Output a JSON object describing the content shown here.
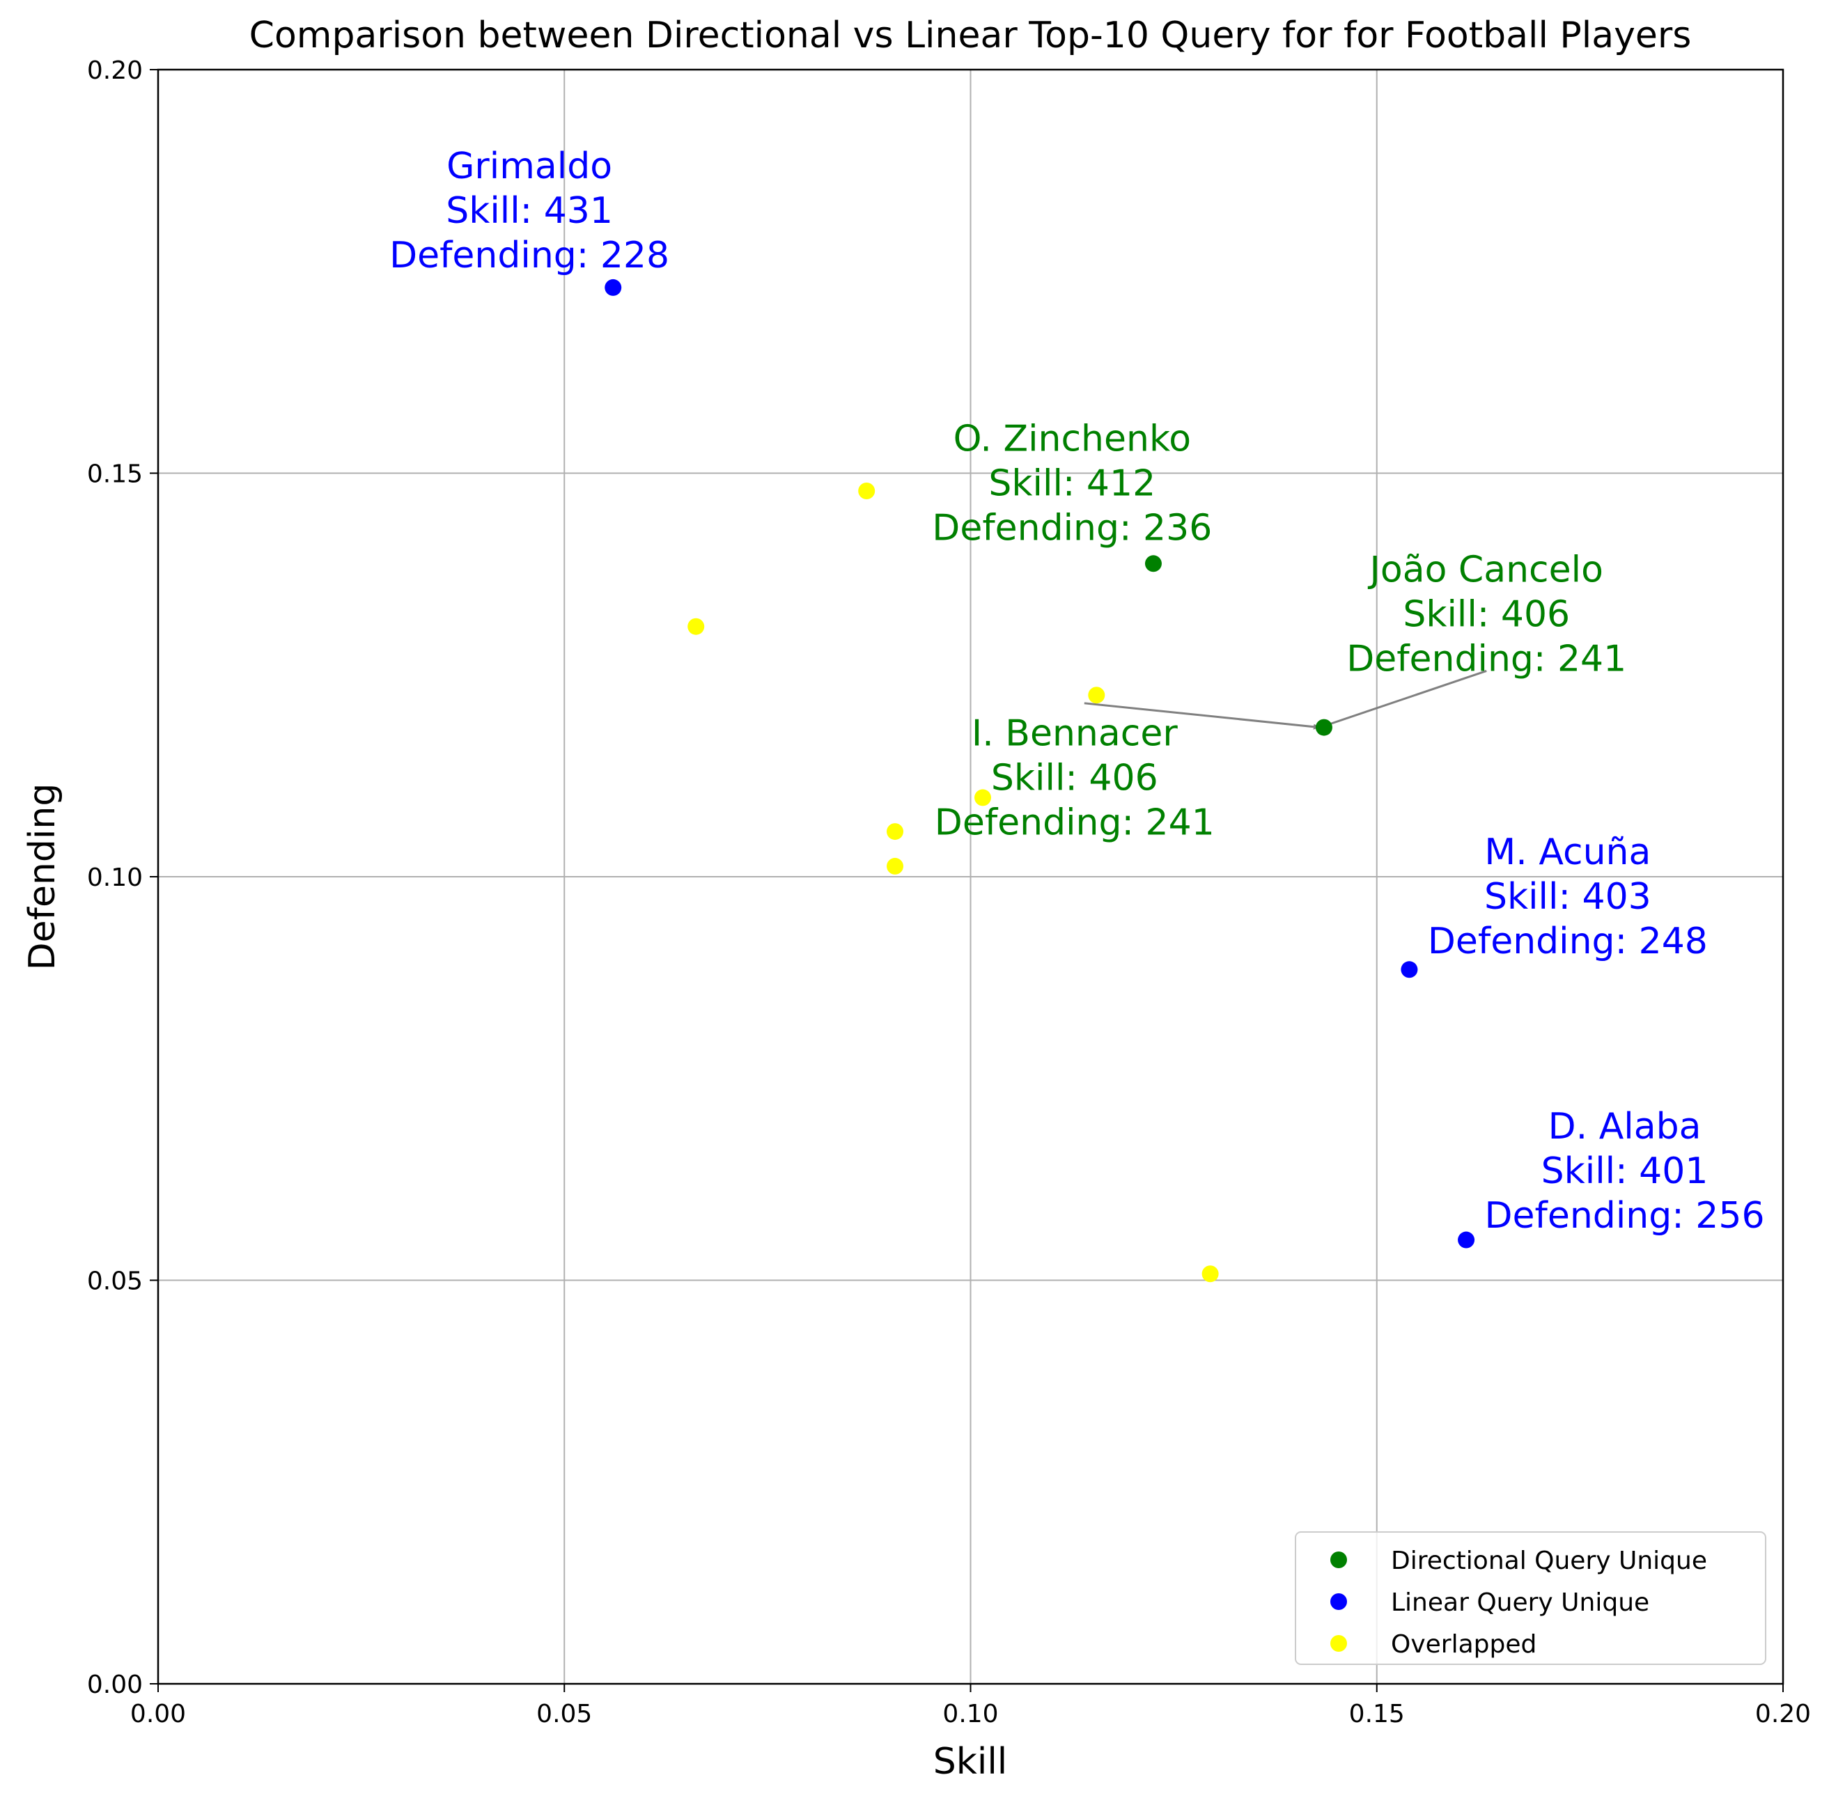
{
  "chart_data": {
    "type": "scatter",
    "title": "Comparison between Directional vs Linear Top-10 Query for for Football Players",
    "xlabel": "Skill",
    "ylabel": "Defending",
    "xlim": [
      0.0,
      0.2
    ],
    "ylim": [
      0.0,
      0.2
    ],
    "xticks": [
      "0.00",
      "0.05",
      "0.10",
      "0.15",
      "0.20"
    ],
    "yticks": [
      "0.00",
      "0.05",
      "0.10",
      "0.15",
      "0.20"
    ],
    "grid": true,
    "legend_position": "lower-right",
    "colors": {
      "directional": "#008000",
      "linear": "#0000ff",
      "overlapped": "#ffff00",
      "arrow": "#808080"
    },
    "series": [
      {
        "name": "Directional Query Unique",
        "key": "directional",
        "points": [
          {
            "x": 0.1225,
            "y": 0.1388
          },
          {
            "x": 0.1435,
            "y": 0.1185
          }
        ]
      },
      {
        "name": "Linear Query Unique",
        "key": "linear",
        "points": [
          {
            "x": 0.056,
            "y": 0.173
          },
          {
            "x": 0.154,
            "y": 0.0885
          },
          {
            "x": 0.161,
            "y": 0.055
          }
        ]
      },
      {
        "name": "Overlapped",
        "key": "overlapped",
        "points": [
          {
            "x": 0.0872,
            "y": 0.1478
          },
          {
            "x": 0.0662,
            "y": 0.131
          },
          {
            "x": 0.1155,
            "y": 0.1225
          },
          {
            "x": 0.1015,
            "y": 0.1098
          },
          {
            "x": 0.0907,
            "y": 0.1056
          },
          {
            "x": 0.0907,
            "y": 0.1013
          },
          {
            "x": 0.1295,
            "y": 0.0508
          }
        ]
      }
    ],
    "annotations": [
      {
        "key": "linear",
        "lines": [
          "Grimaldo",
          "Skill: 431",
          "Defending: 228"
        ],
        "text_x": 0.0457,
        "text_y": 0.1755
      },
      {
        "key": "directional",
        "lines": [
          "O. Zinchenko",
          "Skill: 412",
          "Defending: 236"
        ],
        "text_x": 0.1125,
        "text_y": 0.1417
      },
      {
        "key": "directional",
        "lines": [
          "João Cancelo",
          "Skill: 406",
          "Defending: 241"
        ],
        "text_x": 0.1635,
        "text_y": 0.1255
      },
      {
        "key": "directional",
        "lines": [
          "I. Bennacer",
          "Skill: 406",
          "Defending: 241"
        ],
        "text_x": 0.1128,
        "text_y": 0.1052
      },
      {
        "key": "linear",
        "lines": [
          "M. Acuña",
          "Skill: 403",
          "Defending: 248"
        ],
        "text_x": 0.1735,
        "text_y": 0.0905
      },
      {
        "key": "linear",
        "lines": [
          "D. Alaba",
          "Skill: 401",
          "Defending: 256"
        ],
        "text_x": 0.1805,
        "text_y": 0.0565
      }
    ],
    "arrows": [
      {
        "from_x": 0.1635,
        "from_y": 0.1255,
        "to_x": 0.1435,
        "to_y": 0.1185
      },
      {
        "from_x": 0.114,
        "from_y": 0.1215,
        "to_x": 0.1435,
        "to_y": 0.1185
      }
    ]
  }
}
